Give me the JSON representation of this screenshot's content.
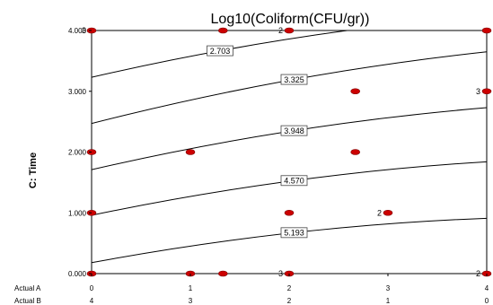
{
  "chart_data": {
    "type": "contour",
    "title": "Log10(Coliform(CFU/gr))",
    "ylabel": "C: Time",
    "ylim": [
      0,
      4
    ],
    "y_ticks": [
      "0.000",
      "1.000",
      "2.000",
      "3.000",
      "4.000"
    ],
    "x_axes": [
      {
        "label": "Actual A",
        "ticks": [
          "0",
          "1",
          "2",
          "3",
          "4"
        ]
      },
      {
        "label": "Actual B",
        "ticks": [
          "4",
          "3",
          "2",
          "1",
          "0"
        ]
      }
    ],
    "xlim": [
      0,
      4
    ],
    "contours": [
      {
        "level": "2.703",
        "y_at_x0": 3.23,
        "y_at_x4": 4.25
      },
      {
        "level": "3.325",
        "y_at_x0": 2.47,
        "y_at_x4": 3.65
      },
      {
        "level": "3.948",
        "y_at_x0": 1.71,
        "y_at_x4": 2.73
      },
      {
        "level": "4.570",
        "y_at_x0": 0.96,
        "y_at_x4": 1.84
      },
      {
        "level": "5.193",
        "y_at_x0": 0.18,
        "y_at_x4": 0.91
      }
    ],
    "contour_label_x": [
      1.3,
      2.05,
      2.05,
      2.05,
      2.05
    ],
    "design_points": [
      {
        "x": 0,
        "y": 4,
        "count": "3"
      },
      {
        "x": 1.33,
        "y": 4
      },
      {
        "x": 2,
        "y": 4,
        "count": "2"
      },
      {
        "x": 4,
        "y": 4
      },
      {
        "x": 2.67,
        "y": 3
      },
      {
        "x": 4,
        "y": 3,
        "count": "3"
      },
      {
        "x": 0,
        "y": 2
      },
      {
        "x": 1,
        "y": 2
      },
      {
        "x": 2.67,
        "y": 2
      },
      {
        "x": 0,
        "y": 1
      },
      {
        "x": 2,
        "y": 1
      },
      {
        "x": 3,
        "y": 1,
        "count": "2"
      },
      {
        "x": 0,
        "y": 0
      },
      {
        "x": 1,
        "y": 0
      },
      {
        "x": 1.33,
        "y": 0
      },
      {
        "x": 2,
        "y": 0,
        "count": "3"
      },
      {
        "x": 4,
        "y": 0,
        "count": "2"
      }
    ],
    "colors": {
      "point": "#cc0000",
      "contour": "#000000",
      "frame": "#000000"
    }
  }
}
